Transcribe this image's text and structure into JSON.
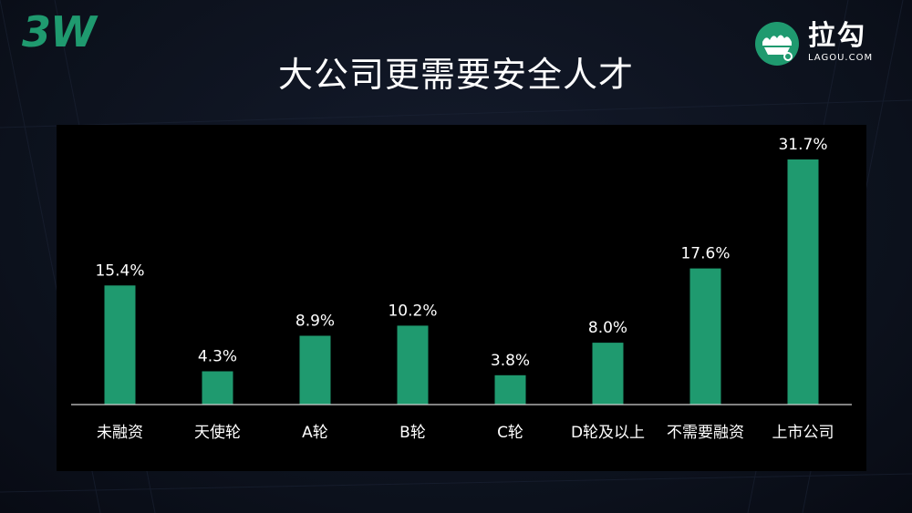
{
  "title": "大公司更需要安全人才",
  "brand": {
    "left_logo": "3W",
    "right_logo_name": "拉勾",
    "right_logo_domain": "LAGOU.COM",
    "accent_color": "#1f9a6f"
  },
  "chart_data": {
    "type": "bar",
    "title": "大公司更需要安全人才",
    "categories": [
      "未融资",
      "天使轮",
      "A轮",
      "B轮",
      "C轮",
      "D轮及以上",
      "不需要融资",
      "上市公司"
    ],
    "values": [
      15.4,
      4.3,
      8.9,
      10.2,
      3.8,
      8.0,
      17.6,
      31.7
    ],
    "value_labels": [
      "15.4%",
      "4.3%",
      "8.9%",
      "10.2%",
      "3.8%",
      "8.0%",
      "17.6%",
      "31.7%"
    ],
    "unit": "%",
    "xlabel": "",
    "ylabel": "",
    "ylim": [
      0,
      31.7
    ],
    "grid": false,
    "legend": "none",
    "bar_color": "#1f9a6f",
    "axis_color": "#cfcfcf"
  }
}
